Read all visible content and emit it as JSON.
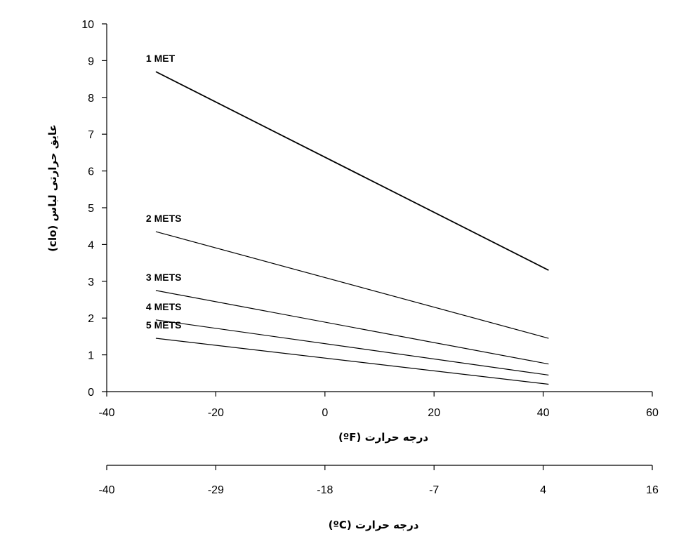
{
  "chart_data": {
    "type": "line",
    "ylabel": "عایق حرارتی لباس (clo)",
    "xlabel": "درجه حرارت (ºF)",
    "x2label": "درجه حرارت (ºC)",
    "xlim": [
      -40,
      60
    ],
    "ylim": [
      0,
      10
    ],
    "xticks": [
      -40,
      -20,
      0,
      20,
      40,
      60
    ],
    "yticks": [
      0,
      1,
      2,
      3,
      4,
      5,
      6,
      7,
      8,
      9,
      10
    ],
    "x2ticks": [
      {
        "at": -40,
        "label": "-40"
      },
      {
        "at": -20,
        "label": "-29"
      },
      {
        "at": 0,
        "label": "-18"
      },
      {
        "at": 20,
        "label": "-7"
      },
      {
        "at": 40,
        "label": "4"
      },
      {
        "at": 60,
        "label": "16"
      }
    ],
    "grid": false,
    "series": [
      {
        "name": "1 MET",
        "x": [
          -31,
          41
        ],
        "y": [
          8.7,
          3.3
        ],
        "width": 1.8
      },
      {
        "name": "2 METS",
        "x": [
          -31,
          41
        ],
        "y": [
          4.35,
          1.45
        ],
        "width": 1.2
      },
      {
        "name": "3 METS",
        "x": [
          -31,
          41
        ],
        "y": [
          2.75,
          0.75
        ],
        "width": 1.2
      },
      {
        "name": "4 METS",
        "x": [
          -31,
          41
        ],
        "y": [
          1.95,
          0.45
        ],
        "width": 1.2
      },
      {
        "name": "5 METS",
        "x": [
          -31,
          41
        ],
        "y": [
          1.45,
          0.2
        ],
        "width": 1.2
      }
    ]
  }
}
